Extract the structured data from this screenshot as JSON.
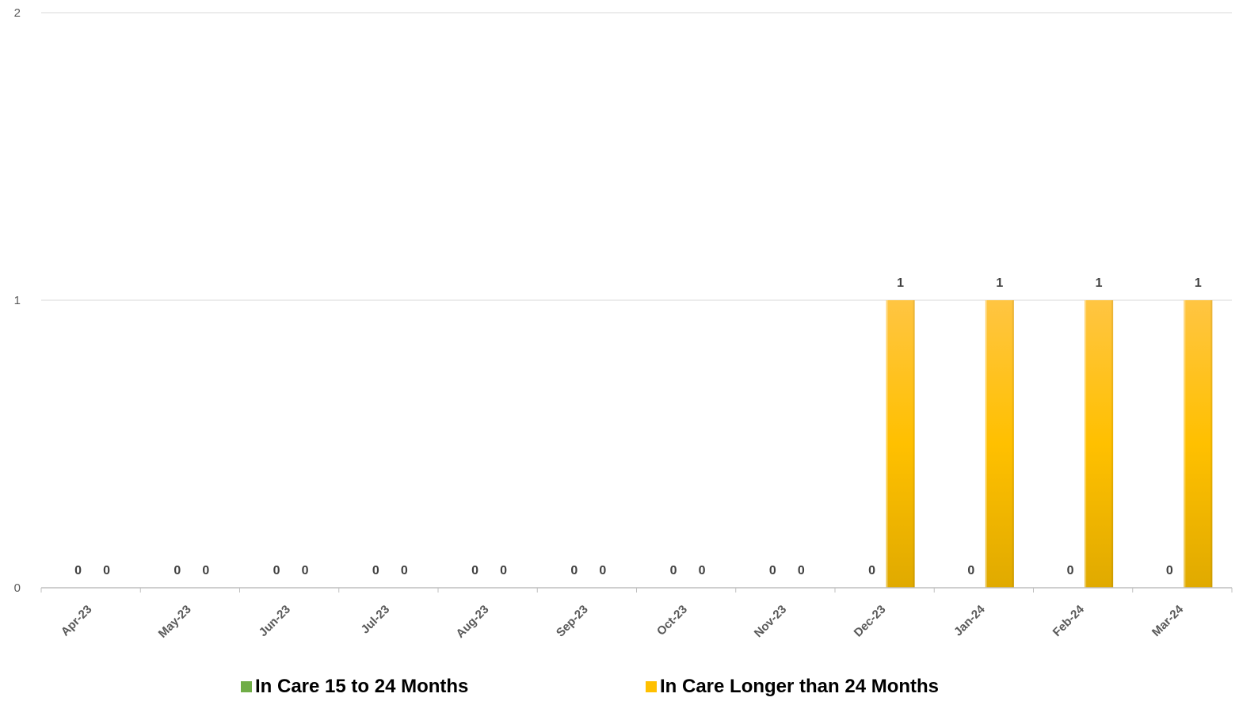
{
  "chart_data": {
    "type": "bar",
    "title": "",
    "xlabel": "",
    "ylabel": "",
    "categories": [
      "Apr-23",
      "May-23",
      "Jun-23",
      "Jul-23",
      "Aug-23",
      "Sep-23",
      "Oct-23",
      "Nov-23",
      "Dec-23",
      "Jan-24",
      "Feb-24",
      "Mar-24"
    ],
    "series": [
      {
        "name": "In Care 15 to 24 Months",
        "color": "#70AD47",
        "values": [
          0,
          0,
          0,
          0,
          0,
          0,
          0,
          0,
          0,
          0,
          0,
          0
        ]
      },
      {
        "name": "In Care Longer than 24 Months",
        "color": "#FFC000",
        "values": [
          0,
          0,
          0,
          0,
          0,
          0,
          0,
          0,
          1,
          1,
          1,
          1
        ]
      }
    ],
    "ylim": [
      0,
      2
    ],
    "yticks": [
      "0",
      "1",
      "2"
    ],
    "grid": true,
    "legend_position": "bottom",
    "data_labels": true
  }
}
